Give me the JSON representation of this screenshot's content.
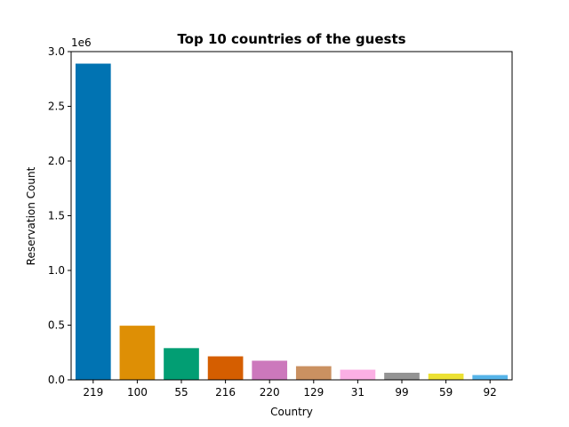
{
  "chart_data": {
    "type": "bar",
    "title": "Top 10 countries of the guests",
    "xlabel": "Country",
    "ylabel": "Reservation Count",
    "y_offset_label": "1e6",
    "categories": [
      "219",
      "100",
      "55",
      "216",
      "220",
      "129",
      "31",
      "99",
      "59",
      "92"
    ],
    "values": [
      2890000,
      495000,
      290000,
      215000,
      175000,
      125000,
      93000,
      65000,
      57000,
      44000
    ],
    "ylim": [
      0,
      3000000
    ],
    "yticks": [
      0,
      500000,
      1000000,
      1500000,
      2000000,
      2500000,
      3000000
    ],
    "ytick_labels": [
      "0.0",
      "0.5",
      "1.0",
      "1.5",
      "2.0",
      "2.5",
      "3.0"
    ],
    "colors": [
      "#0173b2",
      "#de8f05",
      "#029e73",
      "#d55e00",
      "#cc78bc",
      "#ca9161",
      "#fbafe4",
      "#949494",
      "#ece133",
      "#56b4e9"
    ],
    "grid": false,
    "legend": "none"
  }
}
